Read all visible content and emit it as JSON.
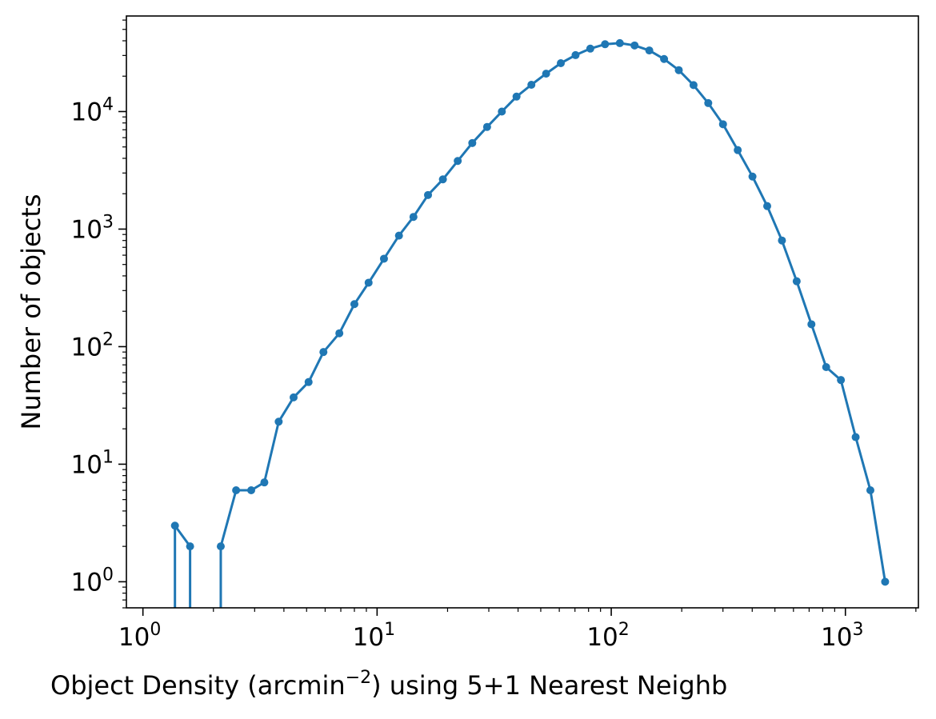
{
  "chart_data": {
    "type": "line",
    "xscale": "log",
    "yscale": "log",
    "xlabel": "Object Density  (arcmin",
    "xlabel_exponent": "−2",
    "xlabel_suffix": ") using 5+1 Nearest Neighb",
    "ylabel": "Number of objects",
    "xlim": [
      0.85,
      2050
    ],
    "ylim": [
      0.6,
      65000
    ],
    "grid": false,
    "xticks": [
      {
        "value": 1,
        "base": "10",
        "exp": "0"
      },
      {
        "value": 10,
        "base": "10",
        "exp": "1"
      },
      {
        "value": 100,
        "base": "10",
        "exp": "2"
      },
      {
        "value": 1000,
        "base": "10",
        "exp": "3"
      }
    ],
    "yticks": [
      {
        "value": 1,
        "base": "10",
        "exp": "0"
      },
      {
        "value": 10,
        "base": "10",
        "exp": "1"
      },
      {
        "value": 100,
        "base": "10",
        "exp": "2"
      },
      {
        "value": 1000,
        "base": "10",
        "exp": "3"
      },
      {
        "value": 10000,
        "base": "10",
        "exp": "4"
      }
    ],
    "series": [
      {
        "color": "#1f77b4",
        "x": [
          1.37,
          1.59,
          2.15,
          2.5,
          2.9,
          3.3,
          3.8,
          4.4,
          5.1,
          5.9,
          6.9,
          8.0,
          9.2,
          10.7,
          12.4,
          14.3,
          16.5,
          19.1,
          22.1,
          25.5,
          29.5,
          34.1,
          39.4,
          45.6,
          52.7,
          60.9,
          70.4,
          81.4,
          94.1,
          108.8,
          125.8,
          145.4,
          168.1,
          194.3,
          224.6,
          259.6,
          300.1,
          346.9,
          401.0,
          463.5,
          535.8,
          619.4,
          716.0,
          827.7,
          956.8,
          1106.0,
          1278.5,
          1477.9
        ],
        "y": [
          3,
          2,
          2,
          6,
          6,
          7,
          23,
          37,
          50,
          90,
          130,
          230,
          350,
          560,
          880,
          1270,
          1950,
          2650,
          3800,
          5400,
          7400,
          10000,
          13400,
          16900,
          21000,
          25800,
          30200,
          34300,
          37400,
          38200,
          36500,
          33100,
          28000,
          22500,
          16800,
          11800,
          7800,
          4700,
          2800,
          1570,
          800,
          360,
          155,
          67,
          52,
          17,
          6,
          1
        ],
        "drop_to_axis_at": [
          1.37,
          1.59,
          2.15
        ]
      }
    ]
  }
}
